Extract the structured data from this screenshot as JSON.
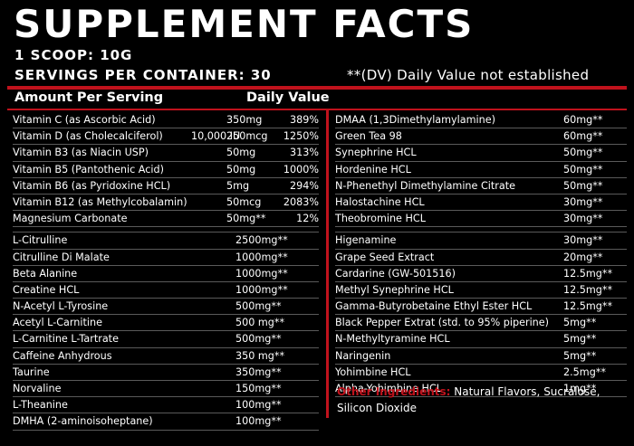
{
  "header": {
    "title": "SUPPLEMENT FACTS",
    "scoop": "1 SCOOP: 10G",
    "servings": "SERVINGS PER CONTAINER: 30",
    "dv_note": "**(DV) Daily Value not established"
  },
  "columns": {
    "amount_per_serving": "Amount Per Serving",
    "daily_value": "Daily Value"
  },
  "left_vitamins": [
    {
      "name": "Vitamin C (as Ascorbic Acid)",
      "extra": "",
      "amount": "350mg",
      "dv": "389%"
    },
    {
      "name": "Vitamin D (as Cholecalciferol)",
      "extra": "10,000 IU",
      "amount": "250mcg",
      "dv": "1250%"
    },
    {
      "name": "Vitamin B3 (as Niacin USP)",
      "extra": "",
      "amount": "50mg",
      "dv": "313%"
    },
    {
      "name": "Vitamin B5 (Pantothenic Acid)",
      "extra": "",
      "amount": "50mg",
      "dv": "1000%"
    },
    {
      "name": "Vitamin B6 (as Pyridoxine HCL)",
      "extra": "",
      "amount": "5mg",
      "dv": "294%"
    },
    {
      "name": "Vitamin B12 (as Methylcobalamin)",
      "extra": "",
      "amount": "50mcg",
      "dv": "2083%"
    },
    {
      "name": "Magnesium Carbonate",
      "extra": "",
      "amount": "50mg**",
      "dv": "12%"
    }
  ],
  "left_blend": [
    {
      "name": "L-Citrulline",
      "amount": "2500mg**"
    },
    {
      "name": "Citrulline Di Malate",
      "amount": "1000mg**"
    },
    {
      "name": "Beta Alanine",
      "amount": "1000mg**"
    },
    {
      "name": "Creatine HCL",
      "amount": "1000mg**"
    },
    {
      "name": "N-Acetyl L-Tyrosine",
      "amount": "500mg**"
    },
    {
      "name": "Acetyl L-Carnitine",
      "amount": "500 mg**"
    },
    {
      "name": "L-Carnitine L-Tartrate",
      "amount": "500mg**"
    },
    {
      "name": "Caffeine Anhydrous",
      "amount": "350 mg**"
    },
    {
      "name": "Taurine",
      "amount": "350mg**"
    },
    {
      "name": "Norvaline",
      "amount": "150mg**"
    },
    {
      "name": "L-Theanine",
      "amount": "100mg**"
    },
    {
      "name": "DMHA (2-aminoisoheptane)",
      "amount": "100mg**"
    }
  ],
  "right_group1": [
    {
      "name": "DMAA (1,3Dimethylamylamine)",
      "amount": "60mg**"
    },
    {
      "name": "Green Tea 98",
      "amount": "60mg**"
    },
    {
      "name": "Synephrine HCL",
      "amount": "50mg**"
    },
    {
      "name": "Hordenine HCL",
      "amount": "50mg**"
    },
    {
      "name": "N-Phenethyl Dimethylamine Citrate",
      "amount": "50mg**"
    },
    {
      "name": "Halostachine HCL",
      "amount": "30mg**"
    },
    {
      "name": "Theobromine HCL",
      "amount": "30mg**"
    }
  ],
  "right_group2": [
    {
      "name": "Higenamine",
      "amount": "30mg**"
    },
    {
      "name": "Grape Seed Extract",
      "amount": "20mg**"
    },
    {
      "name": "Cardarine (GW-501516)",
      "amount": "12.5mg**"
    },
    {
      "name": "Methyl Synephrine HCL",
      "amount": "12.5mg**"
    },
    {
      "name": "Gamma-Butyrobetaine Ethyl Ester HCL",
      "amount": "12.5mg**"
    },
    {
      "name": "Black Pepper Extrat (std. to 95% piperine)",
      "amount": "5mg**"
    },
    {
      "name": "N-Methyltyramine HCL",
      "amount": "5mg**"
    },
    {
      "name": "Naringenin",
      "amount": "5mg**"
    },
    {
      "name": "Yohimbine HCL",
      "amount": "2.5mg**"
    },
    {
      "name": "Alpha-Yohimbine HCL",
      "amount": "1mg**"
    }
  ],
  "other": {
    "label": "Other Ingredients:",
    "text": "Natural Flavors, Sucralose, Silicon Dioxide"
  },
  "colors": {
    "accent": "#c0121c",
    "background": "#000000",
    "text": "#ffffff"
  }
}
